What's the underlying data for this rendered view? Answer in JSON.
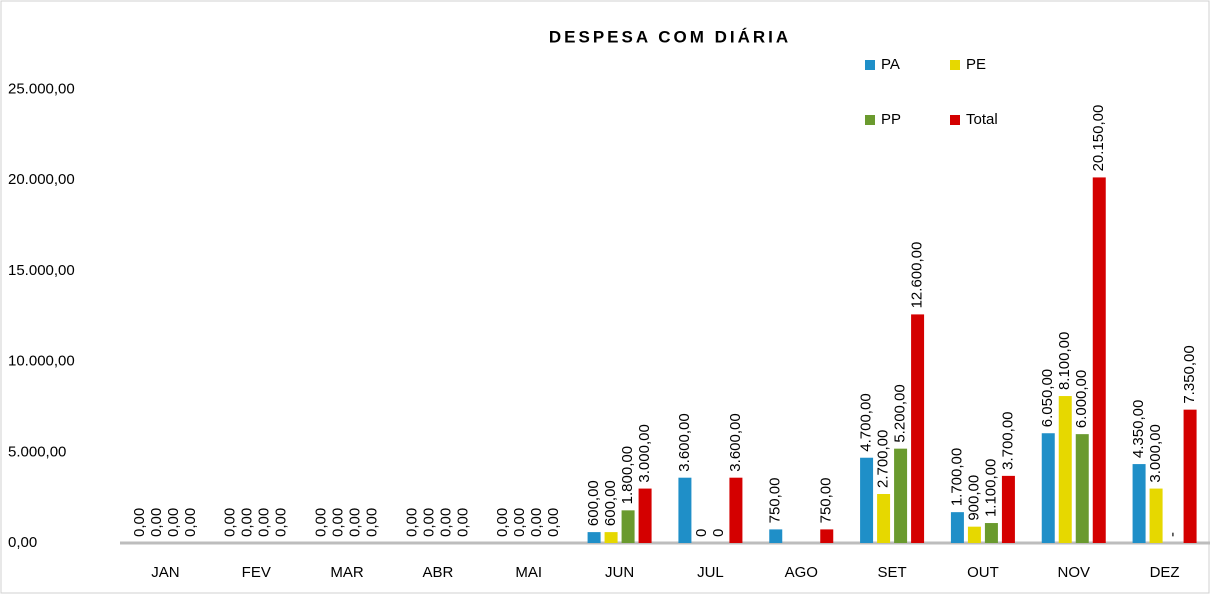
{
  "chart_data": {
    "type": "bar",
    "title": "DESPESA COM DIÁRIA",
    "categories": [
      "JAN",
      "FEV",
      "MAR",
      "ABR",
      "MAI",
      "JUN",
      "JUL",
      "AGO",
      "SET",
      "OUT",
      "NOV",
      "DEZ"
    ],
    "series": [
      {
        "name": "PA",
        "color": "#1f8fc8",
        "values": [
          0,
          0,
          0,
          0,
          0,
          600,
          3600,
          750,
          4700,
          1700,
          6050,
          4350
        ],
        "value_labels": [
          "0,00",
          "0,00",
          "0,00",
          "0,00",
          "0,00",
          "600,00",
          "3.600,00",
          "750,00",
          "4.700,00",
          "1.700,00",
          "6.050,00",
          "4.350,00"
        ]
      },
      {
        "name": "PE",
        "color": "#e6d800",
        "values": [
          0,
          0,
          0,
          0,
          0,
          600,
          0,
          null,
          2700,
          900,
          8100,
          3000
        ],
        "value_labels": [
          "0,00",
          "0,00",
          "0,00",
          "0,00",
          "0,00",
          "600,00",
          "0",
          null,
          "2.700,00",
          "900,00",
          "8.100,00",
          "3.000,00"
        ]
      },
      {
        "name": "PP",
        "color": "#6a9a2e",
        "values": [
          0,
          0,
          0,
          0,
          0,
          1800,
          0,
          null,
          5200,
          1100,
          6000,
          0
        ],
        "value_labels": [
          "0,00",
          "0,00",
          "0,00",
          "0,00",
          "0,00",
          "1.800,00",
          "0",
          null,
          "5.200,00",
          "1.100,00",
          "6.000,00",
          "-"
        ]
      },
      {
        "name": "Total",
        "color": "#d40000",
        "values": [
          0,
          0,
          0,
          0,
          0,
          3000,
          3600,
          750,
          12600,
          3700,
          20150,
          7350
        ],
        "value_labels": [
          "0,00",
          "0,00",
          "0,00",
          "0,00",
          "0,00",
          "3.000,00",
          "3.600,00",
          "750,00",
          "12.600,00",
          "3.700,00",
          "20.150,00",
          "7.350,00"
        ]
      }
    ],
    "ylim": [
      0,
      28000
    ],
    "yticks": [
      {
        "value": 0,
        "label": "0,00"
      },
      {
        "value": 5000,
        "label": "5.000,00"
      },
      {
        "value": 10000,
        "label": "10.000,00"
      },
      {
        "value": 15000,
        "label": "15.000,00"
      },
      {
        "value": 20000,
        "label": "20.000,00"
      },
      {
        "value": 25000,
        "label": "25.000,00"
      }
    ],
    "grid": false,
    "legend": "top-right"
  }
}
